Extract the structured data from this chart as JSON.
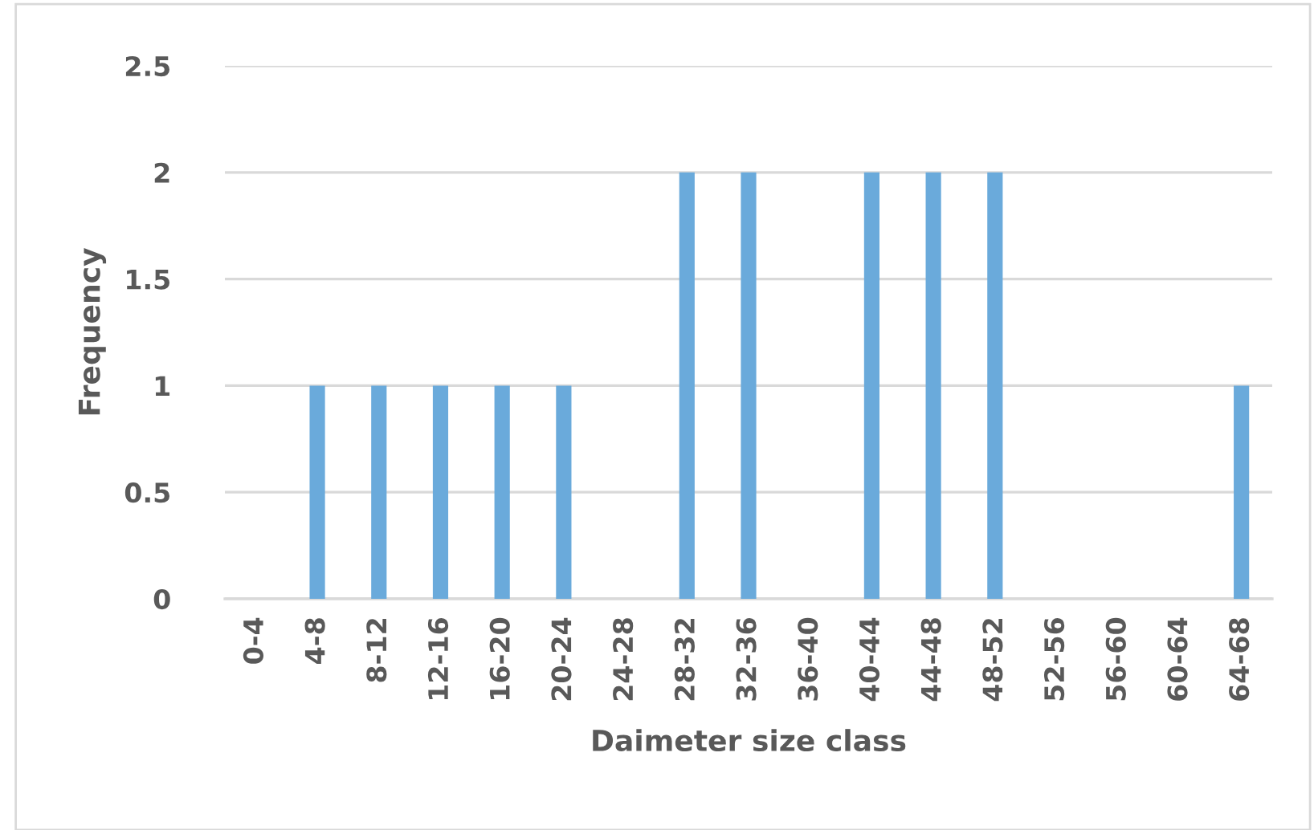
{
  "chart_data": {
    "type": "bar",
    "xlabel": "Daimeter size class",
    "ylabel": "Frequency",
    "categories": [
      "0-4",
      "4-8",
      "8-12",
      "12-16",
      "16-20",
      "20-24",
      "24-28",
      "28-32",
      "32-36",
      "36-40",
      "40-44",
      "44-48",
      "48-52",
      "52-56",
      "56-60",
      "60-64",
      "64-68"
    ],
    "values": [
      0,
      1,
      1,
      1,
      1,
      1,
      0,
      2,
      2,
      0,
      2,
      2,
      2,
      0,
      0,
      0,
      1
    ],
    "color": "#6aaadb",
    "ylim": [
      0,
      2.5
    ],
    "yticks": [
      0,
      0.5,
      1,
      1.5,
      2,
      2.5
    ],
    "grid": "y",
    "legend": false
  }
}
